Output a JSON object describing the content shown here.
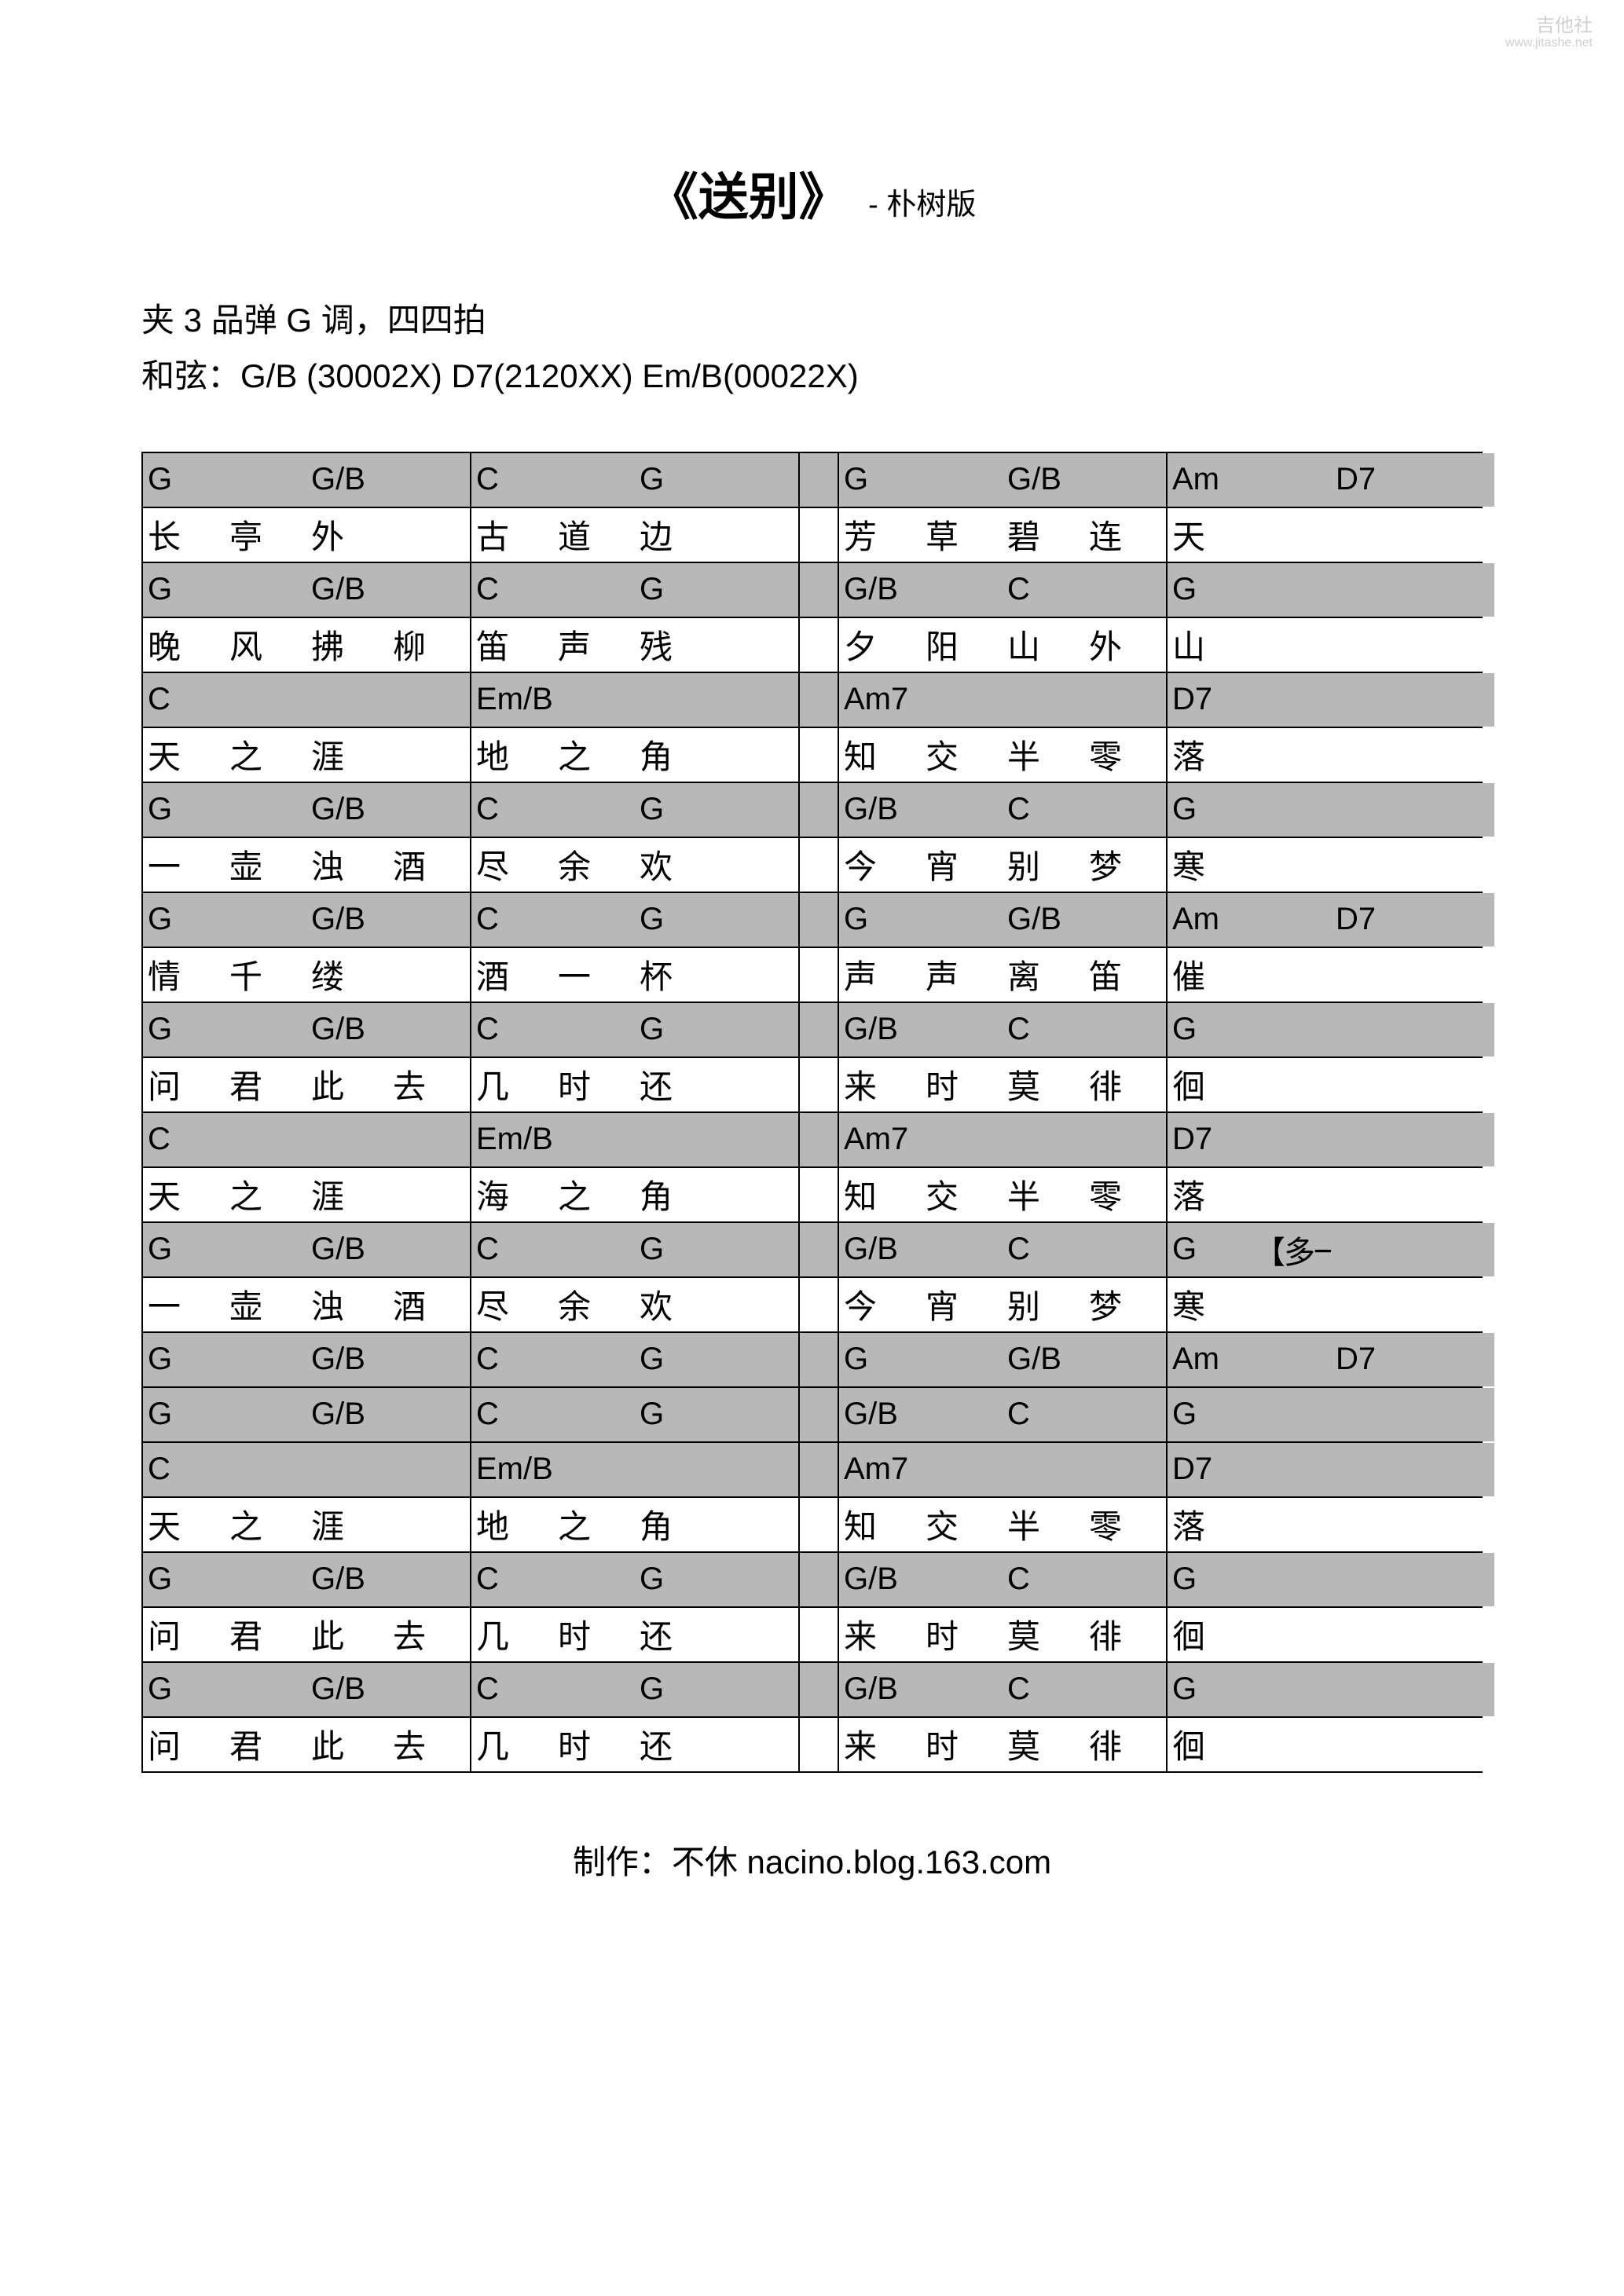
{
  "watermark": {
    "line1": "吉他社",
    "line2": "www.jitashe.net"
  },
  "title": {
    "main": "《送别》",
    "sub": "- 朴树版"
  },
  "info": {
    "line1": "夹 3 品弹 G 调，四四拍",
    "line2": "和弦：G/B (30002X)   D7(2120XX)   Em/B(00022X)"
  },
  "colors": {
    "chord_bg": "#b8b8b8",
    "lyric_bg": "#ffffff",
    "border": "#000000",
    "text": "#000000"
  },
  "layout": {
    "beats_per_measure": 4,
    "measures_per_row": 4,
    "gap_after_measure": 2
  },
  "rows": [
    {
      "type": "chord",
      "cells": [
        [
          "G",
          "",
          "G/B",
          ""
        ],
        [
          "C",
          "",
          "G",
          ""
        ],
        [
          "G",
          "",
          "G/B",
          ""
        ],
        [
          "Am",
          "",
          "D7",
          ""
        ]
      ]
    },
    {
      "type": "lyric",
      "cells": [
        [
          "长",
          "亭",
          "外",
          ""
        ],
        [
          "古",
          "道",
          "边",
          ""
        ],
        [
          "芳",
          "草",
          "碧",
          "连"
        ],
        [
          "天",
          "",
          "",
          ""
        ]
      ]
    },
    {
      "type": "chord",
      "cells": [
        [
          "G",
          "",
          "G/B",
          ""
        ],
        [
          "C",
          "",
          "G",
          ""
        ],
        [
          "G/B",
          "",
          "C",
          ""
        ],
        [
          "G",
          "",
          "",
          ""
        ]
      ]
    },
    {
      "type": "lyric",
      "cells": [
        [
          "晚",
          "风",
          "拂",
          "柳"
        ],
        [
          "笛",
          "声",
          "残",
          ""
        ],
        [
          "夕",
          "阳",
          "山",
          "外"
        ],
        [
          "山",
          "",
          "",
          ""
        ]
      ]
    },
    {
      "type": "chord",
      "cells": [
        [
          "C",
          "",
          "",
          ""
        ],
        [
          "Em/B",
          "",
          "",
          ""
        ],
        [
          "Am7",
          "",
          "",
          ""
        ],
        [
          "D7",
          "",
          "",
          ""
        ]
      ]
    },
    {
      "type": "lyric",
      "cells": [
        [
          "天",
          "之",
          "涯",
          ""
        ],
        [
          "地",
          "之",
          "角",
          ""
        ],
        [
          "知",
          "交",
          "半",
          "零"
        ],
        [
          "落",
          "",
          "",
          ""
        ]
      ]
    },
    {
      "type": "chord",
      "cells": [
        [
          "G",
          "",
          "G/B",
          ""
        ],
        [
          "C",
          "",
          "G",
          ""
        ],
        [
          "G/B",
          "",
          "C",
          ""
        ],
        [
          "G",
          "",
          "",
          ""
        ]
      ]
    },
    {
      "type": "lyric",
      "cells": [
        [
          "一",
          "壶",
          "浊",
          "酒"
        ],
        [
          "尽",
          "余",
          "欢",
          ""
        ],
        [
          "今",
          "宵",
          "别",
          "梦"
        ],
        [
          "寒",
          "",
          "",
          ""
        ]
      ]
    },
    {
      "type": "chord",
      "cells": [
        [
          "G",
          "",
          "G/B",
          ""
        ],
        [
          "C",
          "",
          "G",
          ""
        ],
        [
          "G",
          "",
          "G/B",
          ""
        ],
        [
          "Am",
          "",
          "D7",
          ""
        ]
      ]
    },
    {
      "type": "lyric",
      "cells": [
        [
          "情",
          "千",
          "缕",
          ""
        ],
        [
          "酒",
          "一",
          "杯",
          ""
        ],
        [
          "声",
          "声",
          "离",
          "笛"
        ],
        [
          "催",
          "",
          "",
          ""
        ]
      ]
    },
    {
      "type": "chord",
      "cells": [
        [
          "G",
          "",
          "G/B",
          ""
        ],
        [
          "C",
          "",
          "G",
          ""
        ],
        [
          "G/B",
          "",
          "C",
          ""
        ],
        [
          "G",
          "",
          "",
          ""
        ]
      ]
    },
    {
      "type": "lyric",
      "cells": [
        [
          "问",
          "君",
          "此",
          "去"
        ],
        [
          "几",
          "时",
          "还",
          ""
        ],
        [
          "来",
          "时",
          "莫",
          "徘"
        ],
        [
          "徊",
          "",
          "",
          ""
        ]
      ]
    },
    {
      "type": "chord",
      "cells": [
        [
          "C",
          "",
          "",
          ""
        ],
        [
          "Em/B",
          "",
          "",
          ""
        ],
        [
          "Am7",
          "",
          "",
          ""
        ],
        [
          "D7",
          "",
          "",
          ""
        ]
      ]
    },
    {
      "type": "lyric",
      "cells": [
        [
          "天",
          "之",
          "涯",
          ""
        ],
        [
          "海",
          "之",
          "角",
          ""
        ],
        [
          "知",
          "交",
          "半",
          "零"
        ],
        [
          "落",
          "",
          "",
          ""
        ]
      ]
    },
    {
      "type": "chord",
      "cells": [
        [
          "G",
          "",
          "G/B",
          ""
        ],
        [
          "C",
          "",
          "G",
          ""
        ],
        [
          "G/B",
          "",
          "C",
          ""
        ],
        [
          "G",
          "【多一节G】",
          "",
          ""
        ]
      ]
    },
    {
      "type": "lyric",
      "cells": [
        [
          "一",
          "壶",
          "浊",
          "酒"
        ],
        [
          "尽",
          "余",
          "欢",
          ""
        ],
        [
          "今",
          "宵",
          "别",
          "梦"
        ],
        [
          "寒",
          "",
          "",
          ""
        ]
      ]
    },
    {
      "type": "chord",
      "cells": [
        [
          "G",
          "",
          "G/B",
          ""
        ],
        [
          "C",
          "",
          "G",
          ""
        ],
        [
          "G",
          "",
          "G/B",
          ""
        ],
        [
          "Am",
          "",
          "D7",
          ""
        ]
      ]
    },
    {
      "type": "chord",
      "cells": [
        [
          "G",
          "",
          "G/B",
          ""
        ],
        [
          "C",
          "",
          "G",
          ""
        ],
        [
          "G/B",
          "",
          "C",
          ""
        ],
        [
          "G",
          "",
          "",
          ""
        ]
      ]
    },
    {
      "type": "chord",
      "cells": [
        [
          "C",
          "",
          "",
          ""
        ],
        [
          "Em/B",
          "",
          "",
          ""
        ],
        [
          "Am7",
          "",
          "",
          ""
        ],
        [
          "D7",
          "",
          "",
          ""
        ]
      ]
    },
    {
      "type": "lyric",
      "cells": [
        [
          "天",
          "之",
          "涯",
          ""
        ],
        [
          "地",
          "之",
          "角",
          ""
        ],
        [
          "知",
          "交",
          "半",
          "零"
        ],
        [
          "落",
          "",
          "",
          ""
        ]
      ]
    },
    {
      "type": "chord",
      "cells": [
        [
          "G",
          "",
          "G/B",
          ""
        ],
        [
          "C",
          "",
          "G",
          ""
        ],
        [
          "G/B",
          "",
          "C",
          ""
        ],
        [
          "G",
          "",
          "",
          ""
        ]
      ]
    },
    {
      "type": "lyric",
      "cells": [
        [
          "问",
          "君",
          "此",
          "去"
        ],
        [
          "几",
          "时",
          "还",
          ""
        ],
        [
          "来",
          "时",
          "莫",
          "徘"
        ],
        [
          "徊",
          "",
          "",
          ""
        ]
      ]
    },
    {
      "type": "chord",
      "cells": [
        [
          "G",
          "",
          "G/B",
          ""
        ],
        [
          "C",
          "",
          "G",
          ""
        ],
        [
          "G/B",
          "",
          "C",
          ""
        ],
        [
          "G",
          "",
          "",
          ""
        ]
      ]
    },
    {
      "type": "lyric",
      "cells": [
        [
          "问",
          "君",
          "此",
          "去"
        ],
        [
          "几",
          "时",
          "还",
          ""
        ],
        [
          "来",
          "时",
          "莫",
          "徘"
        ],
        [
          "徊",
          "",
          "",
          ""
        ]
      ]
    }
  ],
  "footer": "制作：不休   nacino.blog.163.com"
}
